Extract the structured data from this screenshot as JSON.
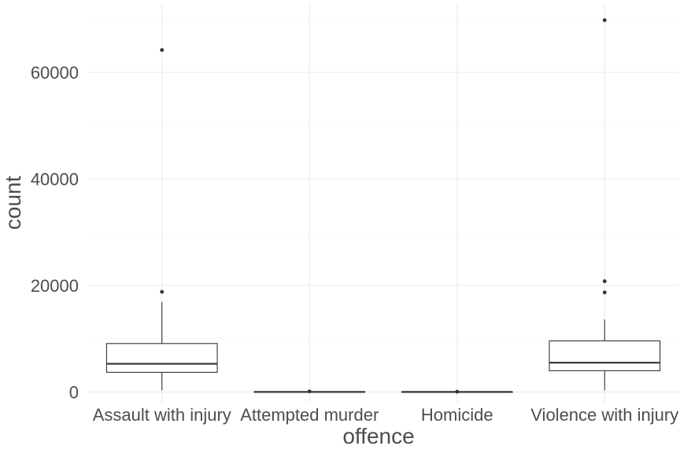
{
  "chart_data": {
    "type": "boxplot",
    "title": "",
    "xlabel": "offence",
    "ylabel": "count",
    "categories": [
      "Assault with injury",
      "Attempted murder",
      "Homicide",
      "Violence with injury"
    ],
    "ylim": [
      -2000,
      73000
    ],
    "y_ticks": [
      0,
      20000,
      40000,
      60000
    ],
    "y_tick_labels": [
      "0",
      "20000",
      "40000",
      "60000"
    ],
    "grid": true,
    "legend": "none",
    "boxes": [
      {
        "category": "Assault with injury",
        "lower_whisker": 300,
        "q1": 3700,
        "median": 5300,
        "q3": 9100,
        "upper_whisker": 16900,
        "outliers": [
          18800,
          64200
        ]
      },
      {
        "category": "Attempted murder",
        "lower_whisker": 0,
        "q1": 10,
        "median": 20,
        "q3": 30,
        "upper_whisker": 60,
        "outliers": [
          120
        ]
      },
      {
        "category": "Homicide",
        "lower_whisker": 0,
        "q1": 5,
        "median": 10,
        "q3": 15,
        "upper_whisker": 30,
        "outliers": [
          60
        ]
      },
      {
        "category": "Violence with injury",
        "lower_whisker": 300,
        "q1": 4000,
        "median": 5500,
        "q3": 9600,
        "upper_whisker": 13600,
        "outliers": [
          18700,
          20800,
          69800
        ]
      }
    ],
    "colors": {
      "box_stroke": "#333333",
      "box_fill": "#ffffff",
      "outlier": "#333333",
      "grid": "#ebebeb",
      "text": "#4d4d4d"
    }
  }
}
